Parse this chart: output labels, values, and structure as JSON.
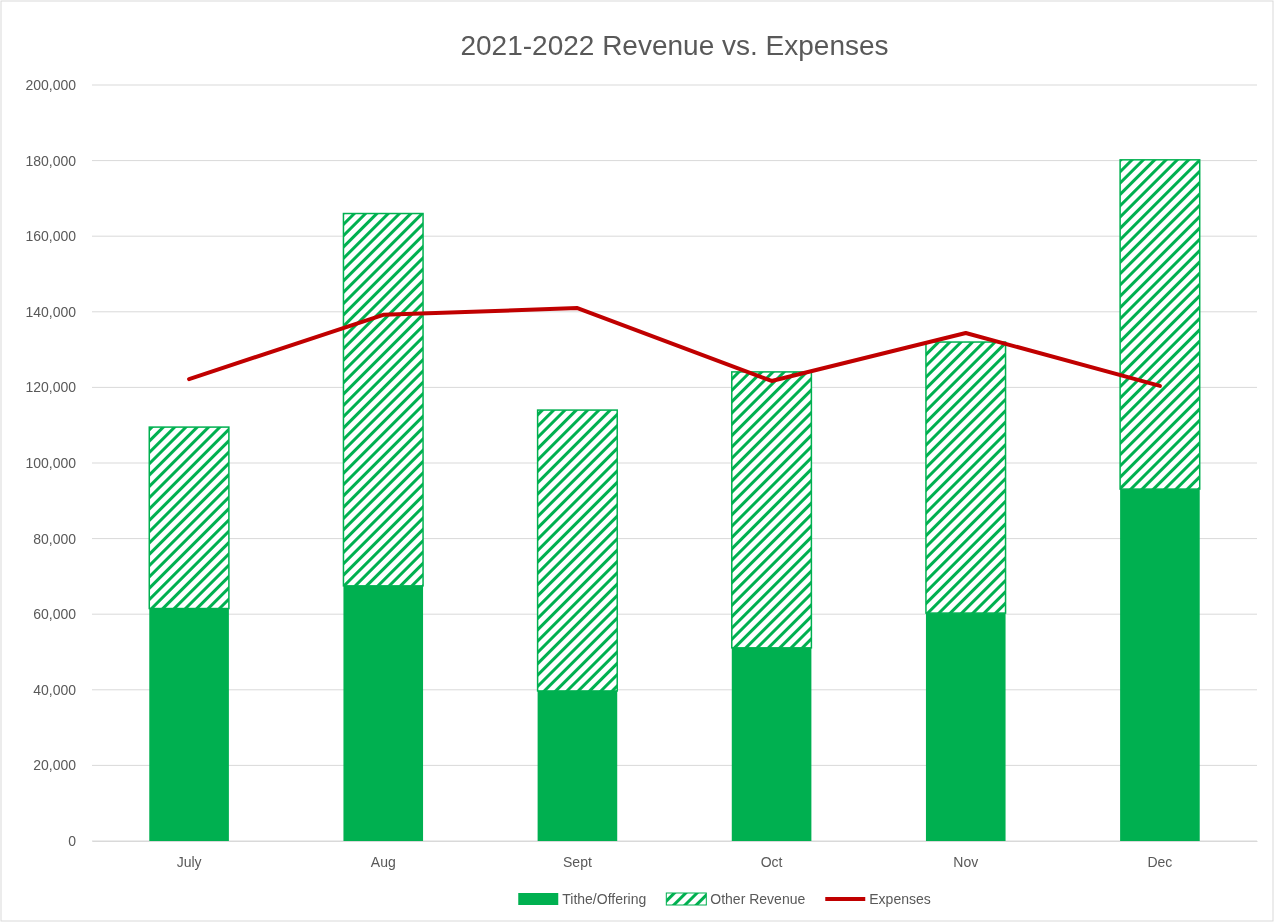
{
  "chart_data": {
    "type": "bar",
    "title": "2021-2022 Revenue vs. Expenses",
    "categories": [
      "July",
      "Aug",
      "Sept",
      "Oct",
      "Nov",
      "Dec"
    ],
    "stacked": true,
    "series": [
      {
        "name": "Tithe/Offering",
        "color": "#00b050",
        "values": [
          61500,
          67500,
          39700,
          51100,
          60300,
          93100
        ]
      },
      {
        "name": "Other Revenue",
        "color": "#00b050",
        "values": [
          48000,
          98500,
          74300,
          73000,
          71700,
          87100
        ]
      },
      {
        "name": "Expenses",
        "color": "#c00000",
        "type": "line",
        "values": [
          122200,
          139200,
          141000,
          121700,
          134400,
          120400
        ]
      }
    ],
    "ylim": [
      0,
      200000
    ],
    "yticks": [
      {
        "value": 0,
        "label": "0"
      },
      {
        "value": 20000,
        "label": "20,000"
      },
      {
        "value": 40000,
        "label": "40,000"
      },
      {
        "value": 60000,
        "label": "60,000"
      },
      {
        "value": 80000,
        "label": "80,000"
      },
      {
        "value": 100000,
        "label": "100,000"
      },
      {
        "value": 120000,
        "label": "120,000"
      },
      {
        "value": 140000,
        "label": "140,000"
      },
      {
        "value": 160000,
        "label": "160,000"
      },
      {
        "value": 180000,
        "label": "180,000"
      },
      {
        "value": 200000,
        "label": "200,000"
      }
    ],
    "grid": "y",
    "legend": "bottom"
  }
}
